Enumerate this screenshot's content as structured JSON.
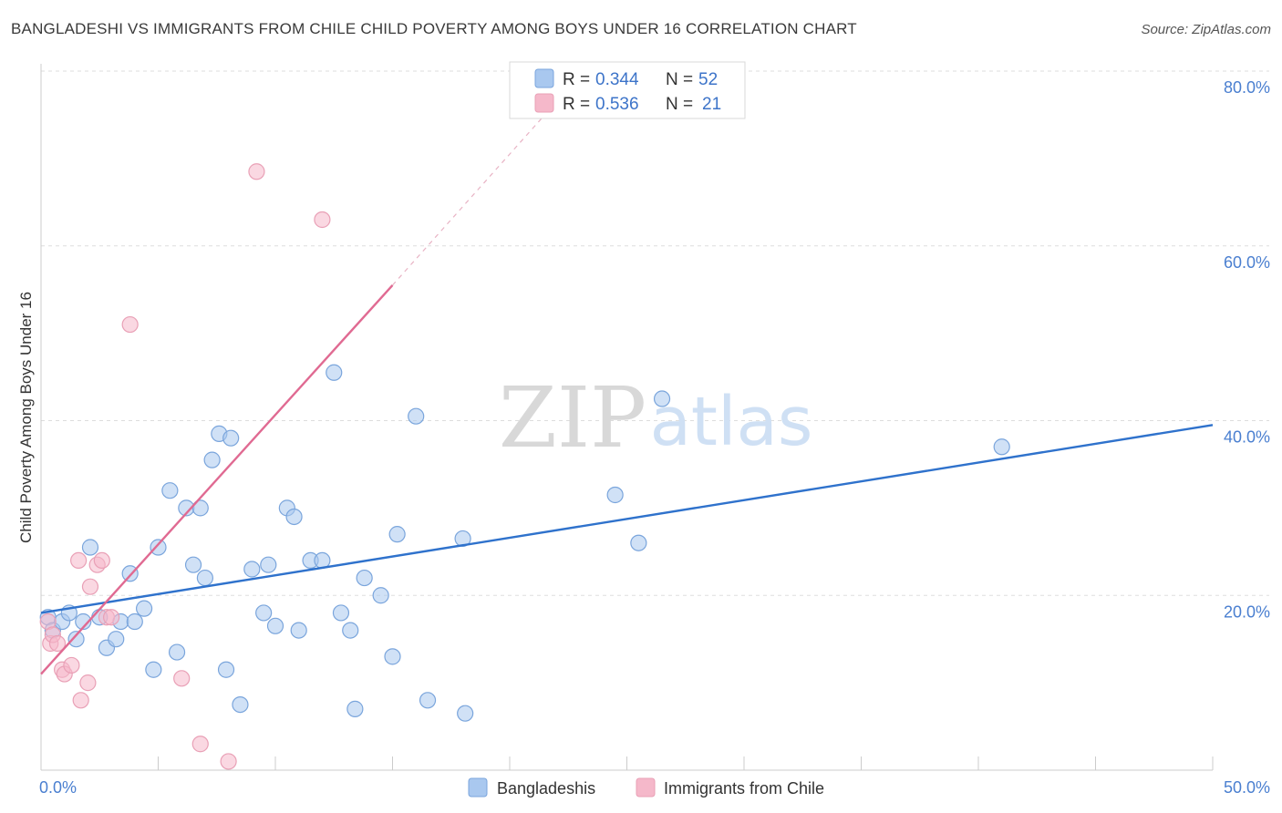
{
  "title": "BANGLADESHI VS IMMIGRANTS FROM CHILE CHILD POVERTY AMONG BOYS UNDER 16 CORRELATION CHART",
  "source": "Source: ZipAtlas.com",
  "watermark": {
    "zip": "ZIP",
    "atlas": "atlas"
  },
  "colors": {
    "bangladeshi_fill": "#a9c8ef",
    "bangladeshi_stroke": "#7aa5dc",
    "bangladeshi_line": "#2f72cc",
    "chile_fill": "#f5b8ca",
    "chile_stroke": "#e9a0b6",
    "chile_line": "#e06a92",
    "grid": "#dddddd",
    "tick_label": "#4a7fd0"
  },
  "legend_top": {
    "rows": [
      {
        "r_label": "R = ",
        "r_value": "0.344",
        "n_label": "N = ",
        "n_value": "52"
      },
      {
        "r_label": "R = ",
        "r_value": "0.536",
        "n_label": "N = ",
        "n_value": "21"
      }
    ]
  },
  "chart_data": {
    "type": "scatter",
    "title": "BANGLADESHI VS IMMIGRANTS FROM CHILE CHILD POVERTY AMONG BOYS UNDER 16 CORRELATION CHART",
    "xlabel": "",
    "ylabel": "Child Poverty Among Boys Under 16",
    "xlim": [
      0,
      50
    ],
    "ylim": [
      0,
      80
    ],
    "x_tick_labels": [
      "0.0%",
      "50.0%"
    ],
    "y_ticks": [
      20,
      40,
      60,
      80
    ],
    "y_tick_labels": [
      "20.0%",
      "40.0%",
      "60.0%",
      "80.0%"
    ],
    "grid": true,
    "legend_position": "bottom",
    "series": [
      {
        "name": "Bangladeshis",
        "points": [
          [
            0.3,
            17.5
          ],
          [
            0.5,
            16.0
          ],
          [
            0.9,
            17.0
          ],
          [
            1.2,
            18.0
          ],
          [
            1.5,
            15.0
          ],
          [
            1.8,
            17.0
          ],
          [
            2.1,
            25.5
          ],
          [
            2.5,
            17.5
          ],
          [
            2.8,
            14.0
          ],
          [
            3.2,
            15.0
          ],
          [
            3.4,
            17.0
          ],
          [
            3.8,
            22.5
          ],
          [
            4.0,
            17.0
          ],
          [
            4.4,
            18.5
          ],
          [
            4.8,
            11.5
          ],
          [
            5.0,
            25.5
          ],
          [
            5.5,
            32.0
          ],
          [
            5.8,
            13.5
          ],
          [
            6.2,
            30.0
          ],
          [
            6.5,
            23.5
          ],
          [
            6.8,
            30.0
          ],
          [
            7.0,
            22.0
          ],
          [
            7.3,
            35.5
          ],
          [
            7.6,
            38.5
          ],
          [
            7.9,
            11.5
          ],
          [
            8.1,
            38.0
          ],
          [
            8.5,
            7.5
          ],
          [
            9.0,
            23.0
          ],
          [
            9.5,
            18.0
          ],
          [
            9.7,
            23.5
          ],
          [
            10.0,
            16.5
          ],
          [
            10.5,
            30.0
          ],
          [
            10.8,
            29.0
          ],
          [
            11.0,
            16.0
          ],
          [
            11.5,
            24.0
          ],
          [
            12.0,
            24.0
          ],
          [
            12.5,
            45.5
          ],
          [
            12.8,
            18.0
          ],
          [
            13.2,
            16.0
          ],
          [
            13.4,
            7.0
          ],
          [
            13.8,
            22.0
          ],
          [
            14.5,
            20.0
          ],
          [
            15.0,
            13.0
          ],
          [
            15.2,
            27.0
          ],
          [
            16.0,
            40.5
          ],
          [
            16.5,
            8.0
          ],
          [
            18.0,
            26.5
          ],
          [
            18.1,
            6.5
          ],
          [
            24.5,
            31.5
          ],
          [
            25.5,
            26.0
          ],
          [
            26.5,
            42.5
          ],
          [
            41.0,
            37.0
          ]
        ],
        "trend": {
          "x": [
            0,
            50
          ],
          "y": [
            18.0,
            39.5
          ]
        }
      },
      {
        "name": "Immigrants from Chile",
        "points": [
          [
            0.3,
            17.0
          ],
          [
            0.4,
            14.5
          ],
          [
            0.5,
            15.5
          ],
          [
            0.7,
            14.5
          ],
          [
            0.9,
            11.5
          ],
          [
            1.0,
            11.0
          ],
          [
            1.3,
            12.0
          ],
          [
            1.6,
            24.0
          ],
          [
            1.7,
            8.0
          ],
          [
            2.0,
            10.0
          ],
          [
            2.1,
            21.0
          ],
          [
            2.4,
            23.5
          ],
          [
            2.6,
            24.0
          ],
          [
            2.8,
            17.5
          ],
          [
            3.0,
            17.5
          ],
          [
            3.8,
            51.0
          ],
          [
            6.0,
            10.5
          ],
          [
            6.8,
            3.0
          ],
          [
            8.0,
            1.0
          ],
          [
            9.2,
            68.5
          ],
          [
            12.0,
            63.0
          ]
        ],
        "trend": {
          "x": [
            0,
            15
          ],
          "y": [
            11.0,
            55.5
          ]
        },
        "trend_extended": {
          "x": [
            15,
            21.5
          ],
          "y": [
            55.5,
            75.0
          ]
        }
      }
    ]
  }
}
